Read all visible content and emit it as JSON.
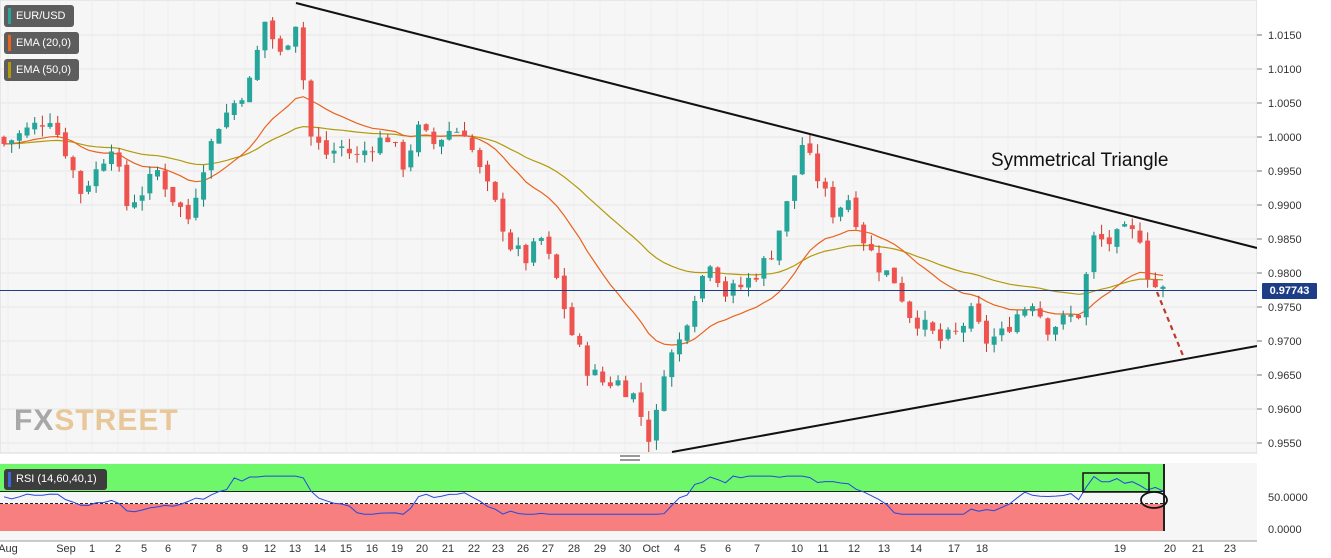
{
  "chart_data": {
    "type": "candlestick",
    "symbol": "EUR/USD",
    "indicators": [
      {
        "name": "EMA (20,0)",
        "color": "#e8641e"
      },
      {
        "name": "EMA (50,0)",
        "color": "#b39a0c"
      }
    ],
    "current_price_label": "0.97743",
    "current_price": 0.97743,
    "annotation": "Symmetrical Triangle",
    "y_ticks": [
      "1.0150",
      "1.0100",
      "1.0050",
      "1.0000",
      "0.9950",
      "0.9900",
      "0.9850",
      "0.9800",
      "0.9750",
      "0.9700",
      "0.9650",
      "0.9600",
      "0.9550"
    ],
    "ylim": [
      0.9535,
      1.0195
    ],
    "x_ticks": [
      "Aug",
      "Sep",
      "1",
      "2",
      "5",
      "6",
      "7",
      "8",
      "9",
      "12",
      "13",
      "14",
      "15",
      "16",
      "19",
      "20",
      "21",
      "22",
      "23",
      "26",
      "27",
      "28",
      "29",
      "30",
      "Oct",
      "4",
      "5",
      "6",
      "7",
      "10",
      "11",
      "12",
      "13",
      "14",
      "17",
      "18",
      "19",
      "20",
      "21",
      "23"
    ],
    "close_path": [
      [
        0,
        0.999
      ],
      [
        3,
        1.001
      ],
      [
        6,
        1.003
      ],
      [
        8,
        0.998
      ],
      [
        10,
        0.992
      ],
      [
        12,
        0.995
      ],
      [
        14,
        0.999
      ],
      [
        16,
        0.99
      ],
      [
        18,
        0.992
      ],
      [
        20,
        0.995
      ],
      [
        22,
        0.991
      ],
      [
        24,
        0.988
      ],
      [
        26,
        0.996
      ],
      [
        28,
        1.002
      ],
      [
        30,
        1.005
      ],
      [
        32,
        1.008
      ],
      [
        34,
        1.017
      ],
      [
        36,
        1.012
      ],
      [
        38,
        1.017
      ],
      [
        40,
        1.0
      ],
      [
        42,
        0.9975
      ],
      [
        44,
        0.9985
      ],
      [
        46,
        0.997
      ],
      [
        48,
        0.999
      ],
      [
        50,
        1.0
      ],
      [
        52,
        0.996
      ],
      [
        54,
        1.001
      ],
      [
        56,
        0.999
      ],
      [
        58,
        1.001
      ],
      [
        60,
        1.001
      ],
      [
        62,
        0.995
      ],
      [
        64,
        0.99
      ],
      [
        66,
        0.984
      ],
      [
        68,
        0.982
      ],
      [
        70,
        0.985
      ],
      [
        72,
        0.979
      ],
      [
        74,
        0.971
      ],
      [
        76,
        0.966
      ],
      [
        78,
        0.964
      ],
      [
        80,
        0.964
      ],
      [
        82,
        0.962
      ],
      [
        84,
        0.956
      ],
      [
        85,
        0.959
      ],
      [
        86,
        0.966
      ],
      [
        88,
        0.97
      ],
      [
        90,
        0.977
      ],
      [
        92,
        0.982
      ],
      [
        94,
        0.977
      ],
      [
        96,
        0.978
      ],
      [
        98,
        0.98
      ],
      [
        100,
        0.983
      ],
      [
        102,
        0.99
      ],
      [
        104,
        0.999
      ],
      [
        106,
        0.994
      ],
      [
        108,
        0.989
      ],
      [
        110,
        0.991
      ],
      [
        112,
        0.985
      ],
      [
        114,
        0.981
      ],
      [
        116,
        0.979
      ],
      [
        118,
        0.974
      ],
      [
        120,
        0.972
      ],
      [
        122,
        0.97
      ],
      [
        124,
        0.971
      ],
      [
        126,
        0.974
      ],
      [
        128,
        0.97
      ],
      [
        130,
        0.971
      ],
      [
        132,
        0.974
      ],
      [
        134,
        0.976
      ],
      [
        136,
        0.972
      ],
      [
        138,
        0.973
      ],
      [
        140,
        0.974
      ],
      [
        142,
        0.985
      ],
      [
        144,
        0.9845
      ],
      [
        146,
        0.986
      ],
      [
        148,
        0.9855
      ],
      [
        149,
        0.98
      ],
      [
        150,
        0.978
      ],
      [
        151,
        0.9774
      ]
    ],
    "rsi": {
      "name": "RSI (14,60,40,1)",
      "levels": [
        60,
        40
      ],
      "y_ticks": [
        "50.0000",
        "0.0000"
      ]
    }
  }
}
